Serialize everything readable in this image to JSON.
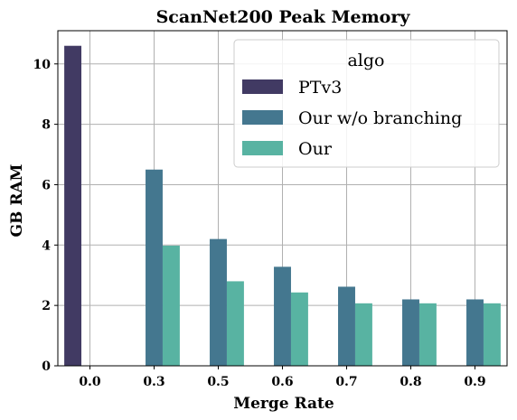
{
  "chart_data": {
    "type": "bar",
    "title": "ScanNet200 Peak Memory",
    "xlabel": "Merge Rate",
    "ylabel": "GB RAM",
    "categories": [
      "0.0",
      "0.3",
      "0.5",
      "0.6",
      "0.7",
      "0.8",
      "0.9"
    ],
    "ylim": [
      0,
      11.1
    ],
    "yticks": [
      "0",
      "2",
      "4",
      "6",
      "8",
      "10"
    ],
    "grid": true,
    "legend": {
      "title": "algo",
      "placement": "top-right"
    },
    "series": [
      {
        "name": "PTv3",
        "color": "#413a63",
        "values": [
          10.6,
          null,
          null,
          null,
          null,
          null,
          null
        ]
      },
      {
        "name": "Our w/o branching",
        "color": "#44778f",
        "values": [
          null,
          6.5,
          4.2,
          3.28,
          2.62,
          2.2,
          2.2
        ]
      },
      {
        "name": "Our",
        "color": "#58b3a2",
        "values": [
          null,
          3.98,
          2.8,
          2.43,
          2.07,
          2.07,
          2.07
        ]
      }
    ]
  }
}
